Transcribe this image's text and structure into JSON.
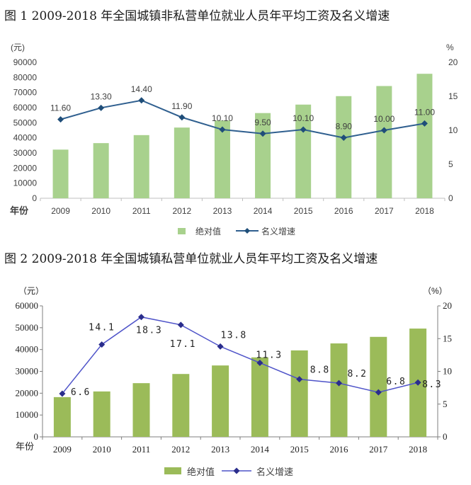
{
  "chart_data": [
    {
      "type": "bar",
      "title": "图 1 2009-2018 年全国城镇非私营单位就业人员年平均工资及名义增速",
      "categories": [
        "2009",
        "2010",
        "2011",
        "2012",
        "2013",
        "2014",
        "2015",
        "2016",
        "2017",
        "2018"
      ],
      "xlabel": "年份",
      "ylabel": "(元)",
      "y2label": "%",
      "ylim": [
        0,
        90000
      ],
      "y2lim": [
        0,
        20
      ],
      "y_ticks": [
        0,
        10000,
        20000,
        30000,
        40000,
        50000,
        60000,
        70000,
        80000,
        90000
      ],
      "y2_ticks": [
        0,
        5,
        10,
        15,
        20
      ],
      "grid": false,
      "legend": "bottom-center",
      "series": [
        {
          "name": "绝对值",
          "type": "bar",
          "axis": "left",
          "values": [
            32200,
            36500,
            41800,
            46800,
            51500,
            56400,
            62000,
            67600,
            74300,
            82400
          ],
          "color": "#a8d18d"
        },
        {
          "name": "名义增速",
          "type": "line",
          "axis": "right",
          "marker": "diamond",
          "values": [
            11.6,
            13.3,
            14.4,
            11.9,
            10.1,
            9.5,
            10.1,
            8.9,
            10.0,
            11.0
          ],
          "labels": [
            "11.60",
            "13.30",
            "14.40",
            "11.90",
            "10.10",
            "9.50",
            "10.10",
            "8.90",
            "10.00",
            "11.00"
          ],
          "color": "#2f5f8f",
          "marker_color": "#1f4e79"
        }
      ]
    },
    {
      "type": "bar",
      "title": "图 2 2009-2018 年全国城镇私营单位就业人员年平均工资及名义增速",
      "categories": [
        "2009",
        "2010",
        "2011",
        "2012",
        "2013",
        "2014",
        "2015",
        "2016",
        "2017",
        "2018"
      ],
      "xlabel": "年份",
      "ylabel": "（元）",
      "y2label": "（%）",
      "ylim": [
        0,
        60000
      ],
      "y2lim": [
        0,
        20
      ],
      "y_ticks": [
        0,
        10000,
        20000,
        30000,
        40000,
        50000,
        60000
      ],
      "y2_ticks": [
        0,
        5,
        10,
        15,
        20
      ],
      "grid": false,
      "legend": "bottom-center",
      "series": [
        {
          "name": "绝对值",
          "type": "bar",
          "axis": "left",
          "values": [
            18200,
            20800,
            24600,
            28800,
            32700,
            36400,
            39600,
            42800,
            45800,
            49600
          ],
          "color": "#9bbb59"
        },
        {
          "name": "名义增速",
          "type": "line",
          "axis": "right",
          "marker": "diamond",
          "values": [
            6.6,
            14.1,
            18.3,
            17.1,
            13.8,
            11.3,
            8.8,
            8.2,
            6.8,
            8.3
          ],
          "labels": [
            "6.6",
            "14.1",
            "18.3",
            "17.1",
            "13.8",
            "11.3",
            "8.8",
            "8.2",
            "6.8",
            "8.3"
          ],
          "color": "#4f54c9",
          "marker_color": "#2a2d8c"
        }
      ]
    }
  ]
}
